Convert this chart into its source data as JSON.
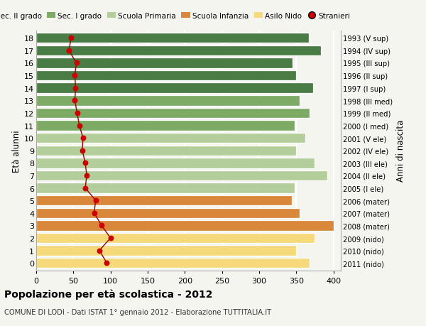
{
  "ages": [
    18,
    17,
    16,
    15,
    14,
    13,
    12,
    11,
    10,
    9,
    8,
    7,
    6,
    5,
    4,
    3,
    2,
    1,
    0
  ],
  "years": [
    "1993 (V sup)",
    "1994 (IV sup)",
    "1995 (III sup)",
    "1996 (II sup)",
    "1997 (I sup)",
    "1998 (III med)",
    "1999 (II med)",
    "2000 (I med)",
    "2001 (V ele)",
    "2002 (IV ele)",
    "2003 (III ele)",
    "2004 (II ele)",
    "2005 (I ele)",
    "2006 (mater)",
    "2007 (mater)",
    "2008 (mater)",
    "2009 (nido)",
    "2010 (nido)",
    "2011 (nido)"
  ],
  "bar_values": [
    367,
    383,
    345,
    350,
    373,
    355,
    368,
    348,
    362,
    350,
    375,
    392,
    348,
    344,
    355,
    400,
    375,
    350,
    368
  ],
  "bar_colors": [
    "#4a7c45",
    "#4a7c45",
    "#4a7c45",
    "#4a7c45",
    "#4a7c45",
    "#7dab66",
    "#7dab66",
    "#7dab66",
    "#b3ce9a",
    "#b3ce9a",
    "#b3ce9a",
    "#b3ce9a",
    "#b3ce9a",
    "#d9873a",
    "#d9873a",
    "#d9873a",
    "#f5d97a",
    "#f5d97a",
    "#f5d97a"
  ],
  "stranieri_values": [
    47,
    44,
    54,
    52,
    53,
    52,
    55,
    58,
    63,
    62,
    66,
    68,
    66,
    80,
    78,
    88,
    100,
    85,
    95
  ],
  "title": "Popolazione per età scolastica - 2012",
  "subtitle": "COMUNE DI LODI - Dati ISTAT 1° gennaio 2012 - Elaborazione TUTTITALIA.IT",
  "ylabel_left": "Età alunni",
  "ylabel_right": "Anni di nascita",
  "xlim": [
    0,
    410
  ],
  "xticks": [
    0,
    50,
    100,
    150,
    200,
    250,
    300,
    350,
    400
  ],
  "legend_labels": [
    "Sec. II grado",
    "Sec. I grado",
    "Scuola Primaria",
    "Scuola Infanzia",
    "Asilo Nido",
    "Stranieri"
  ],
  "legend_colors": [
    "#4a7c45",
    "#7dab66",
    "#b3ce9a",
    "#d9873a",
    "#f5d97a",
    "#cc0000"
  ],
  "background_color": "#f5f5f0",
  "grid_color": "#ffffff",
  "stranieri_line_color": "#990000",
  "stranieri_dot_color": "#cc0000",
  "bar_height": 0.82
}
